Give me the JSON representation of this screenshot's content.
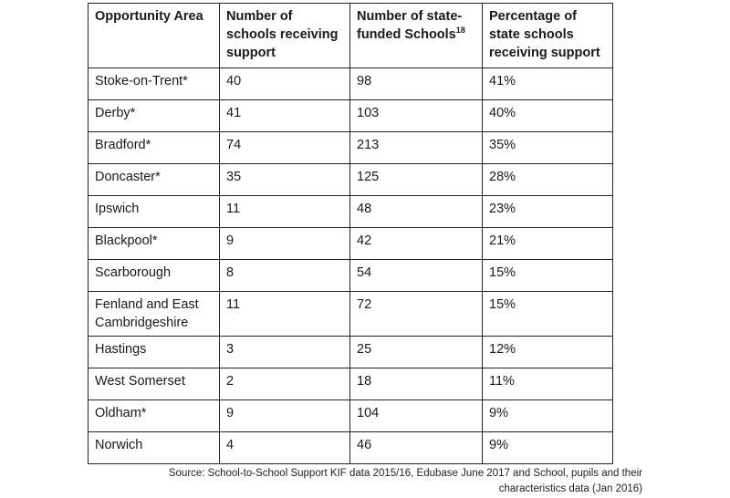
{
  "table": {
    "headers": {
      "area": "Opportunity Area",
      "supported": "Number of schools receiving support",
      "state_funded": "Number of state-funded Schools",
      "state_funded_sup": "18",
      "percentage": "Percentage of state schools receiving support"
    },
    "rows": [
      {
        "area": "Stoke-on-Trent*",
        "supported": "40",
        "state_funded": "98",
        "percentage": "41%"
      },
      {
        "area": "Derby*",
        "supported": "41",
        "state_funded": "103",
        "percentage": "40%"
      },
      {
        "area": "Bradford*",
        "supported": "74",
        "state_funded": "213",
        "percentage": "35%"
      },
      {
        "area": "Doncaster*",
        "supported": "35",
        "state_funded": "125",
        "percentage": "28%"
      },
      {
        "area": "Ipswich",
        "supported": "11",
        "state_funded": "48",
        "percentage": "23%"
      },
      {
        "area": "Blackpool*",
        "supported": "9",
        "state_funded": "42",
        "percentage": "21%"
      },
      {
        "area": "Scarborough",
        "supported": "8",
        "state_funded": "54",
        "percentage": "15%"
      },
      {
        "area": "Fenland and East Cambridgeshire",
        "supported": "11",
        "state_funded": "72",
        "percentage": "15%"
      },
      {
        "area": "Hastings",
        "supported": "3",
        "state_funded": "25",
        "percentage": "12%"
      },
      {
        "area": "West Somerset",
        "supported": "2",
        "state_funded": "18",
        "percentage": "11%"
      },
      {
        "area": "Oldham*",
        "supported": "9",
        "state_funded": "104",
        "percentage": "9%"
      },
      {
        "area": "Norwich",
        "supported": "4",
        "state_funded": "46",
        "percentage": "9%"
      }
    ]
  },
  "source": {
    "line1": "Source: School-to-School Support KIF data 2015/16, Edubase June 2017 and School, pupils and their",
    "line2": "characteristics data (Jan 2016)"
  }
}
